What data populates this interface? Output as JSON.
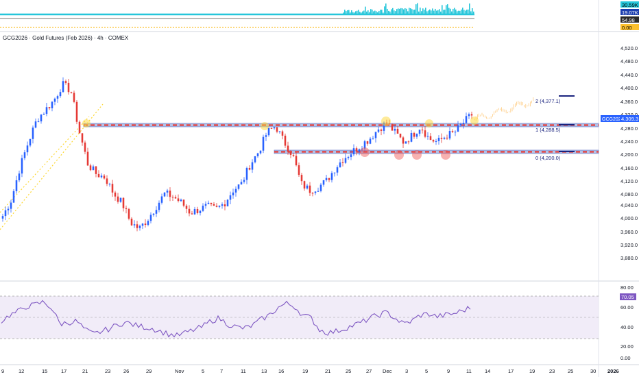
{
  "symbol_title": "GCG2026 · Gold Futures (Feb 2026) · 4h · COMEX",
  "colors": {
    "up": "#2962ff",
    "down": "#e53935",
    "resistance": "#e53935",
    "support_line": "#5c6bc0",
    "highlight_yellow": "#fdd835",
    "highlight_red": "#ef5350",
    "rsi_line": "#7e57c2",
    "rsi_band": "#ede7f6",
    "volume_fill": "#26c6da",
    "forecast": "#ffcc80",
    "fib_target": "#1a237e"
  },
  "top_indicator": {
    "badges": [
      {
        "text": "30.59K",
        "bg": "#26c6da"
      },
      {
        "text": "19.07K",
        "bg": "#1e40af"
      },
      {
        "text": "54.98",
        "bg": "#2a2a2a"
      },
      {
        "text": "0.00",
        "bg": "#fbc02d"
      }
    ]
  },
  "price_axis": {
    "labels": [
      "4,520.0",
      "4,480.0",
      "4,440.0",
      "4,400.0",
      "4,360.0",
      "4,320.0",
      "4,280.0",
      "4,240.0",
      "4,200.0",
      "4,160.0",
      "4,120.0",
      "4,080.0",
      "4,040.0",
      "4,000.0",
      "3,960.0",
      "3,920.0",
      "3,880.0"
    ],
    "current_symbol": "GCG2026",
    "current_price": "4,309.3"
  },
  "fib_labels": [
    {
      "text": "2 (4,377.1)"
    },
    {
      "text": "1 (4,288.5)"
    },
    {
      "text": "0 (4,200.0)"
    }
  ],
  "rsi_panel": {
    "labels": [
      "80.00",
      "60.00",
      "40.00",
      "20.00",
      "0.00"
    ],
    "current_value": "70.05"
  },
  "time_axis": {
    "labels": [
      "9",
      "12",
      "15",
      "17",
      "21",
      "23",
      "26",
      "29",
      "Nov",
      "5",
      "7",
      "11",
      "13",
      "16",
      "19",
      "21",
      "25",
      "27",
      "Dec",
      "3",
      "5",
      "9",
      "11",
      "14",
      "17",
      "19",
      "23",
      "25",
      "30",
      "2026"
    ]
  },
  "chart_data": {
    "type": "candlestick",
    "price_range": [
      3840,
      4540
    ],
    "series": [
      {
        "name": "price_path_approx",
        "values": [
          4000,
          4050,
          4150,
          4230,
          4300,
          4330,
          4360,
          4410,
          4390,
          4260,
          4160,
          4130,
          4120,
          4070,
          4040,
          3980,
          3960,
          3990,
          4030,
          4070,
          4060,
          4040,
          4010,
          4020,
          4030,
          4020,
          4040,
          4080,
          4100,
          4160,
          4200,
          4260,
          4280,
          4230,
          4190,
          4100,
          4080,
          4090,
          4110,
          4150,
          4180,
          4200,
          4220,
          4240,
          4270,
          4290,
          4260,
          4230,
          4250,
          4280,
          4240,
          4230,
          4250,
          4260,
          4290,
          4315
        ]
      }
    ],
    "resistance_level": 4288.5,
    "support_level": 4200,
    "fib_levels": [
      {
        "label": "2",
        "value": 4377.1
      },
      {
        "label": "1",
        "value": 4288.5
      },
      {
        "label": "0",
        "value": 4200.0
      }
    ],
    "rsi": {
      "range": [
        0,
        100
      ],
      "upper_band": 70,
      "middle": 50,
      "lower_band": 30,
      "current": 70.05,
      "values": [
        52,
        60,
        65,
        72,
        74,
        78,
        70,
        48,
        50,
        52,
        40,
        34,
        38,
        42,
        48,
        50,
        46,
        44,
        42,
        38,
        34,
        32,
        36,
        40,
        44,
        52,
        56,
        48,
        44,
        42,
        46,
        54,
        60,
        70,
        76,
        72,
        60,
        56,
        40,
        36,
        38,
        42,
        46,
        50,
        56,
        60,
        64,
        56,
        48,
        52,
        60,
        62,
        58,
        60,
        62,
        66,
        70
      ]
    }
  }
}
